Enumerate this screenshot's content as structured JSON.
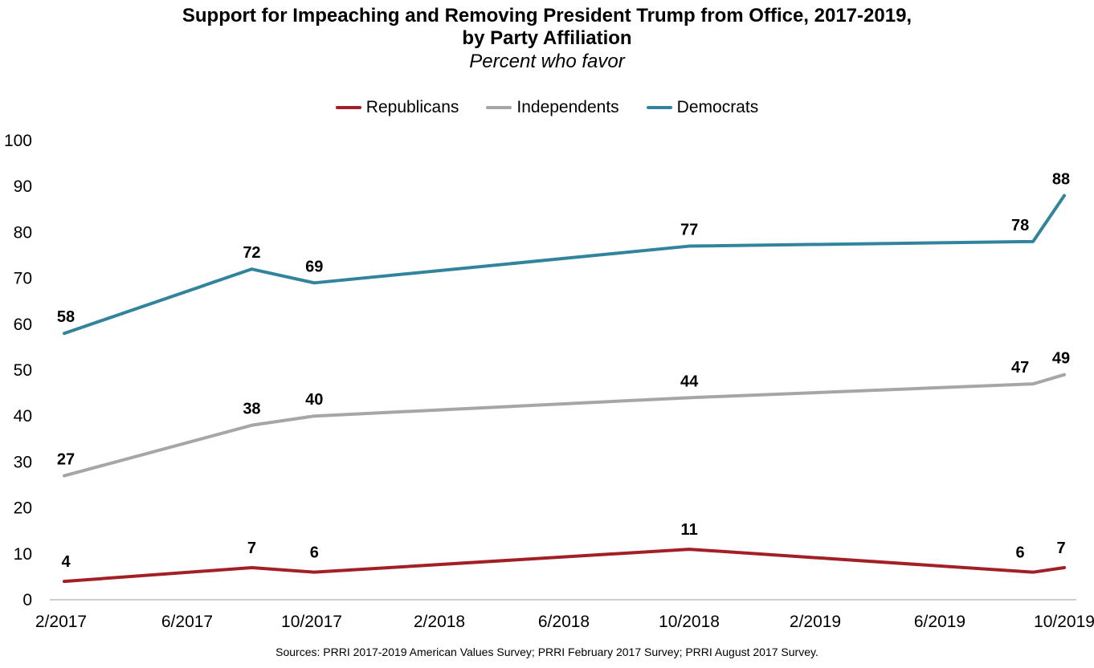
{
  "chart_data": {
    "type": "line",
    "title": "Support for Impeaching and Removing President Trump from Office, 2017-2019,",
    "title_line2": "by Party Affiliation",
    "subtitle": "Percent who favor",
    "x_tick_labels": [
      "2/2017",
      "6/2017",
      "10/2017",
      "2/2018",
      "6/2018",
      "10/2018",
      "2/2019",
      "6/2019",
      "10/2019"
    ],
    "x_dates": [
      "2017-02",
      "2017-08",
      "2017-10",
      "2018-10",
      "2019-09",
      "2019-10"
    ],
    "xlim": [
      "2017-02",
      "2019-10"
    ],
    "ylim": [
      0,
      100
    ],
    "y_ticks": [
      0,
      10,
      20,
      30,
      40,
      50,
      60,
      70,
      80,
      90,
      100
    ],
    "grid": false,
    "legend_position": "top-center",
    "series": [
      {
        "name": "Republicans",
        "color": "#A31F26",
        "values": [
          4,
          7,
          6,
          11,
          6,
          7
        ]
      },
      {
        "name": "Independents",
        "color": "#A6A6A6",
        "values": [
          27,
          38,
          40,
          44,
          47,
          49
        ]
      },
      {
        "name": "Democrats",
        "color": "#31849B",
        "values": [
          58,
          72,
          69,
          77,
          78,
          88
        ]
      }
    ]
  },
  "source": "Sources: PRRI 2017-2019 American Values Survey; PRRI February 2017 Survey; PRRI August 2017 Survey."
}
